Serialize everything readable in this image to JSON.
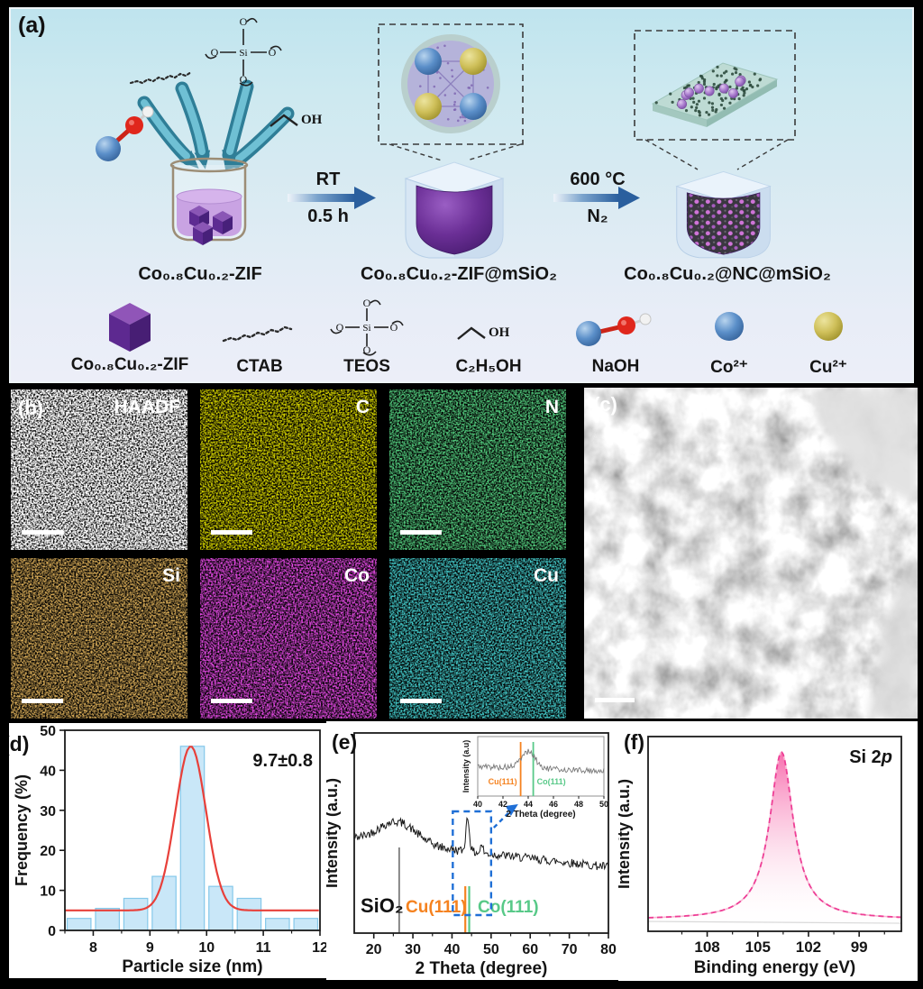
{
  "figure": {
    "panel_a": {
      "tag": "(a)",
      "stage_labels": [
        "Co₀.₈Cu₀.₂-ZIF",
        "Co₀.₈Cu₀.₂-ZIF@mSiO₂",
        "Co₀.₈Cu₀.₂@NC@mSiO₂"
      ],
      "arrow1": {
        "top": "RT",
        "bottom": "0.5 h"
      },
      "arrow2": {
        "top": "600 °C",
        "bottom": "N₂"
      },
      "atoms": {
        "si": "Si",
        "o": "O",
        "oh": "OH"
      },
      "legend": [
        {
          "icon": "zif-cube",
          "label": "Co₀.₈Cu₀.₂-ZIF"
        },
        {
          "icon": "ctab-chain",
          "label": "CTAB"
        },
        {
          "icon": "teos-molecule",
          "label": "TEOS"
        },
        {
          "icon": "ethanol",
          "label": "C₂H₅OH"
        },
        {
          "icon": "naoh",
          "label": "NaOH"
        },
        {
          "icon": "co-ion",
          "label": "Co²⁺"
        },
        {
          "icon": "cu-ion",
          "label": "Cu²⁺"
        }
      ],
      "colors": {
        "zif_purple": "#6b2f96",
        "shell_blue": "#d7e6f4",
        "co_blue": "#5b8fc9",
        "cu_yellow": "#cfc05a",
        "arrow_blue": "#2a5f9e",
        "ribbon_teal": "#2f7e97"
      }
    },
    "panel_b": {
      "tag": "(b)",
      "maps": [
        {
          "label": "HAADF",
          "color": "#ffffff"
        },
        {
          "label": "C",
          "color": "#b3b000"
        },
        {
          "label": "N",
          "color": "#18a83a"
        },
        {
          "label": "Si",
          "color": "#c0731b"
        },
        {
          "label": "Co",
          "color": "#d012d0"
        },
        {
          "label": "Cu",
          "color": "#0f9c9c"
        }
      ]
    },
    "panel_c": {
      "tag": "(c)"
    }
  },
  "chart_data": [
    {
      "id": "particle-size-histogram",
      "type": "bar",
      "panel": "(d)",
      "annotation": "9.7±0.8",
      "xlabel": "Particle size (nm)",
      "ylabel": "Frequency (%)",
      "xlim": [
        7.5,
        12
      ],
      "ylim": [
        0,
        50
      ],
      "xticks": [
        8,
        9,
        10,
        11,
        12
      ],
      "yticks": [
        0,
        10,
        20,
        30,
        40,
        50
      ],
      "categories": [
        7.75,
        8.25,
        8.75,
        9.25,
        9.75,
        10.25,
        10.75,
        11.25,
        11.75
      ],
      "values": [
        3,
        5.5,
        8,
        13.5,
        46,
        11,
        8,
        3,
        3
      ],
      "bar_width": 0.42,
      "bar_fill": "#c9e7f8",
      "bar_edge": "#85c8ea",
      "fit": {
        "type": "gaussian",
        "center": 9.72,
        "sigma": 0.27,
        "amplitude": 41,
        "baseline": 5,
        "color": "#e8403a"
      }
    },
    {
      "id": "xrd-pattern",
      "type": "line",
      "panel": "(e)",
      "xlabel": "2 Theta (degree)",
      "ylabel": "Intensity (a.u.)",
      "xlim": [
        15,
        80
      ],
      "xticks": [
        20,
        30,
        40,
        50,
        60,
        70,
        80
      ],
      "line_color": "#1a1a1a",
      "trace": {
        "baseline_start": 0.47,
        "baseline_end": 0.33,
        "noise": 0.022,
        "peaks": [
          {
            "center": 26,
            "sigma": 4.8,
            "amp": 0.11
          },
          {
            "center": 44,
            "sigma": 0.45,
            "amp": 0.17
          },
          {
            "center": 47.6,
            "sigma": 0.3,
            "amp": 0.045
          }
        ]
      },
      "ref_lines": [
        {
          "label": "SiO₂",
          "x": 26.5,
          "color": "#6e6e6e",
          "label_color": "#111111"
        },
        {
          "label": "Cu(111)",
          "x": 43.4,
          "color": "#f5821f",
          "label_color": "#f5821f"
        },
        {
          "label": "Co(111)",
          "x": 44.4,
          "color": "#58c988",
          "label_color": "#58c988"
        }
      ],
      "zoom_box": {
        "x1": 40.2,
        "x2": 50,
        "color": "#1f6fd6"
      },
      "inset": {
        "xlabel": "2 Theta (degree)",
        "ylabel": "Intensity (a.u)",
        "xlim": [
          40,
          50
        ],
        "xticks": [
          40,
          42,
          44,
          46,
          48,
          50
        ],
        "trace": {
          "baseline_start": 0.5,
          "baseline_end": 0.42,
          "noise": 0.05,
          "peaks": [
            {
              "center": 44,
              "sigma": 0.55,
              "amp": 0.28
            }
          ]
        },
        "ref_lines": [
          {
            "label": "Cu(111)",
            "x": 43.4,
            "color": "#f5821f"
          },
          {
            "label": "Co(111)",
            "x": 44.4,
            "color": "#58c988"
          }
        ]
      }
    },
    {
      "id": "xps-si2p",
      "type": "area",
      "panel": "(f)",
      "label": {
        "prefix": "Si 2",
        "italic": "p"
      },
      "xlabel": "Binding energy (eV)",
      "ylabel": "Intensity (a.u.)",
      "xlim": [
        111.5,
        96.5
      ],
      "x_reversed": true,
      "xticks": [
        108,
        105,
        102,
        99
      ],
      "peak": {
        "center": 103.6,
        "hwhm": 0.85,
        "amplitude": 0.86,
        "baseline": 0.06
      },
      "colors": {
        "fill_top": "#f768ab",
        "line": "#ee3f96",
        "raw_line": "#f9b8d4",
        "baseline": "#d9d9d9"
      }
    }
  ]
}
